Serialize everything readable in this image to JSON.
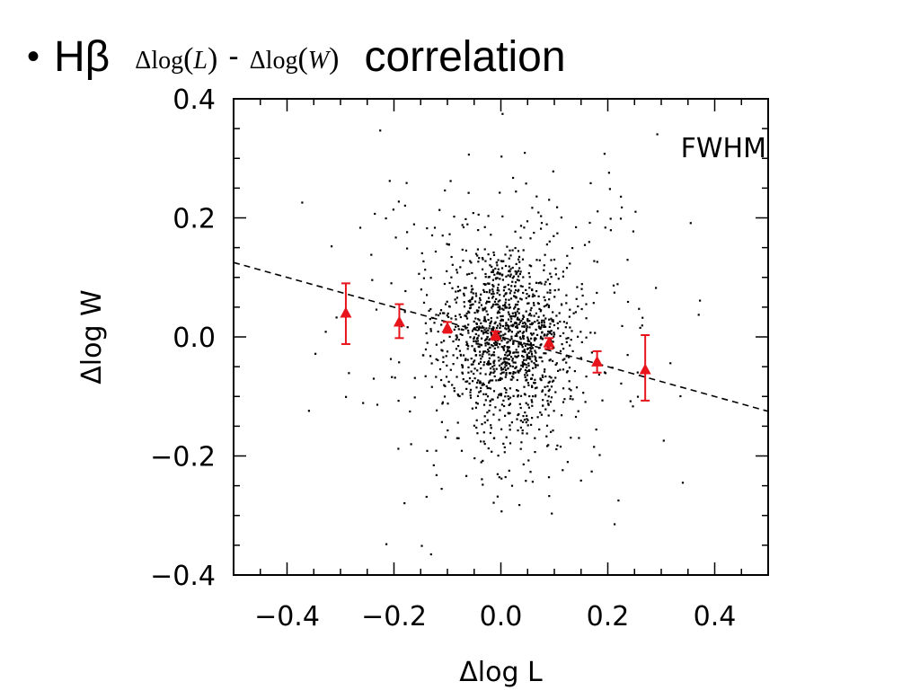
{
  "slide": {
    "bullet": "•",
    "title_lead": "Hβ",
    "math_left": {
      "delta": "Δ",
      "func": "log",
      "arg": "L"
    },
    "separator": "-",
    "math_right": {
      "delta": "Δ",
      "func": "log",
      "arg": "W"
    },
    "title_tail": "correlation"
  },
  "chart_data": {
    "type": "scatter",
    "xlabel": "Δlog L",
    "ylabel": "Δlog W",
    "annotation": "FWHM",
    "xlim": [
      -0.5,
      0.5
    ],
    "ylim": [
      -0.4,
      0.4
    ],
    "x_ticks": [
      -0.4,
      -0.2,
      0.0,
      0.2,
      0.4
    ],
    "x_tick_labels": [
      "−0.4",
      "−0.2",
      "0.0",
      "0.2",
      "0.4"
    ],
    "y_ticks": [
      -0.4,
      -0.2,
      0.0,
      0.2,
      0.4
    ],
    "y_tick_labels": [
      "−0.4",
      "−0.2",
      "0.0",
      "0.2",
      "0.4"
    ],
    "grid": false,
    "colors": {
      "scatter": "#000000",
      "binned": "#e8141b",
      "fit": "#000000"
    },
    "series": [
      {
        "type": "binned_mean",
        "x": [
          -0.29,
          -0.19,
          -0.1,
          -0.01,
          0.09,
          0.18,
          0.27
        ],
        "y": [
          0.04,
          0.025,
          0.015,
          0.003,
          -0.01,
          -0.042,
          -0.055
        ],
        "y_err_low": [
          0.052,
          0.027,
          0.008,
          0.008,
          0.01,
          0.018,
          0.052
        ],
        "y_err_high": [
          0.05,
          0.03,
          0.01,
          0.006,
          0.008,
          0.018,
          0.058
        ]
      },
      {
        "type": "fit_line",
        "style": "dashed",
        "x": [
          -0.5,
          0.5
        ],
        "y": [
          0.125,
          -0.125
        ]
      }
    ]
  }
}
